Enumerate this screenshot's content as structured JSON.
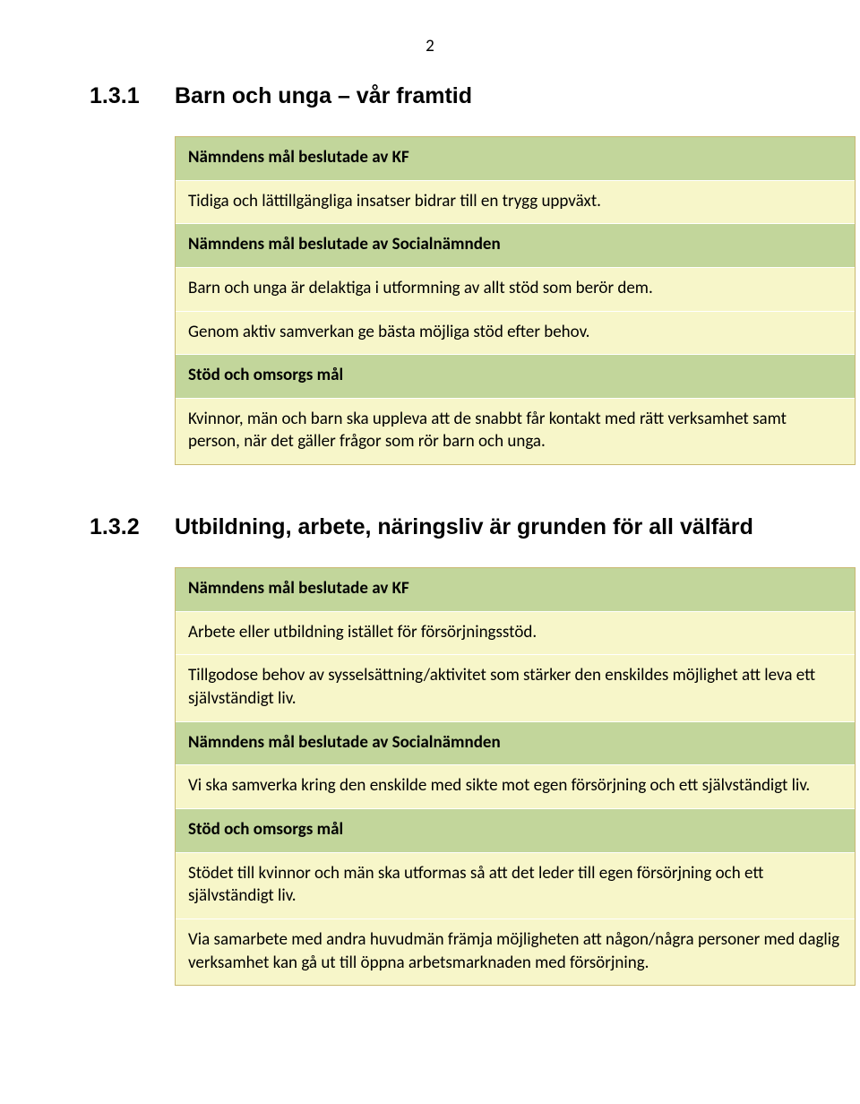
{
  "page_number": "2",
  "colors": {
    "green": "#c2d69b",
    "yellow": "#f7f6c9",
    "border": "#c9b871",
    "text": "#000000",
    "background": "#ffffff"
  },
  "typography": {
    "body_font": "Calibri, Arial, sans-serif",
    "heading_font": "Arial, sans-serif",
    "heading_size_pt": 19,
    "body_size_pt": 14
  },
  "section1": {
    "number": "1.3.1",
    "title": "Barn och unga – vår framtid",
    "rows": [
      {
        "text": "Nämndens mål beslutade av KF",
        "bg": "green",
        "bold": true
      },
      {
        "text": "Tidiga och lättillgängliga insatser bidrar till en trygg uppväxt.",
        "bg": "yellow",
        "bold": false
      },
      {
        "text": "Nämndens mål beslutade av Socialnämnden",
        "bg": "green",
        "bold": true
      },
      {
        "text": "Barn och unga är delaktiga i utformning av allt stöd som berör dem.",
        "bg": "yellow",
        "bold": false
      },
      {
        "text": "Genom aktiv samverkan ge bästa möjliga stöd efter behov.",
        "bg": "yellow",
        "bold": false
      },
      {
        "text": "Stöd och omsorgs mål",
        "bg": "green",
        "bold": true
      },
      {
        "text": "Kvinnor, män och barn ska uppleva att de snabbt får kontakt med rätt verksamhet samt person, när det gäller frågor som rör barn och unga.",
        "bg": "yellow",
        "bold": false
      }
    ]
  },
  "section2": {
    "number": "1.3.2",
    "title": "Utbildning, arbete, näringsliv är grunden för all välfärd",
    "rows": [
      {
        "text": "Nämndens mål beslutade av KF",
        "bg": "green",
        "bold": true
      },
      {
        "text": "Arbete eller utbildning istället för försörjningsstöd.",
        "bg": "yellow",
        "bold": false
      },
      {
        "text": "Tillgodose behov av sysselsättning/aktivitet som stärker den enskildes möjlighet att leva ett självständigt liv.",
        "bg": "yellow",
        "bold": false
      },
      {
        "text": "Nämndens mål beslutade av Socialnämnden",
        "bg": "green",
        "bold": true
      },
      {
        "text": "Vi ska samverka kring den enskilde med sikte mot egen försörjning och ett självständigt liv.",
        "bg": "yellow",
        "bold": false
      },
      {
        "text": "Stöd och omsorgs mål",
        "bg": "green",
        "bold": true
      },
      {
        "text": "Stödet till kvinnor och män ska utformas så att det leder till egen försörjning och ett självständigt liv.",
        "bg": "yellow",
        "bold": false
      },
      {
        "text": "Via samarbete med andra huvudmän främja möjligheten att någon/några personer med daglig verksamhet kan gå ut till öppna arbetsmarknaden med försörjning.",
        "bg": "yellow",
        "bold": false
      }
    ]
  }
}
